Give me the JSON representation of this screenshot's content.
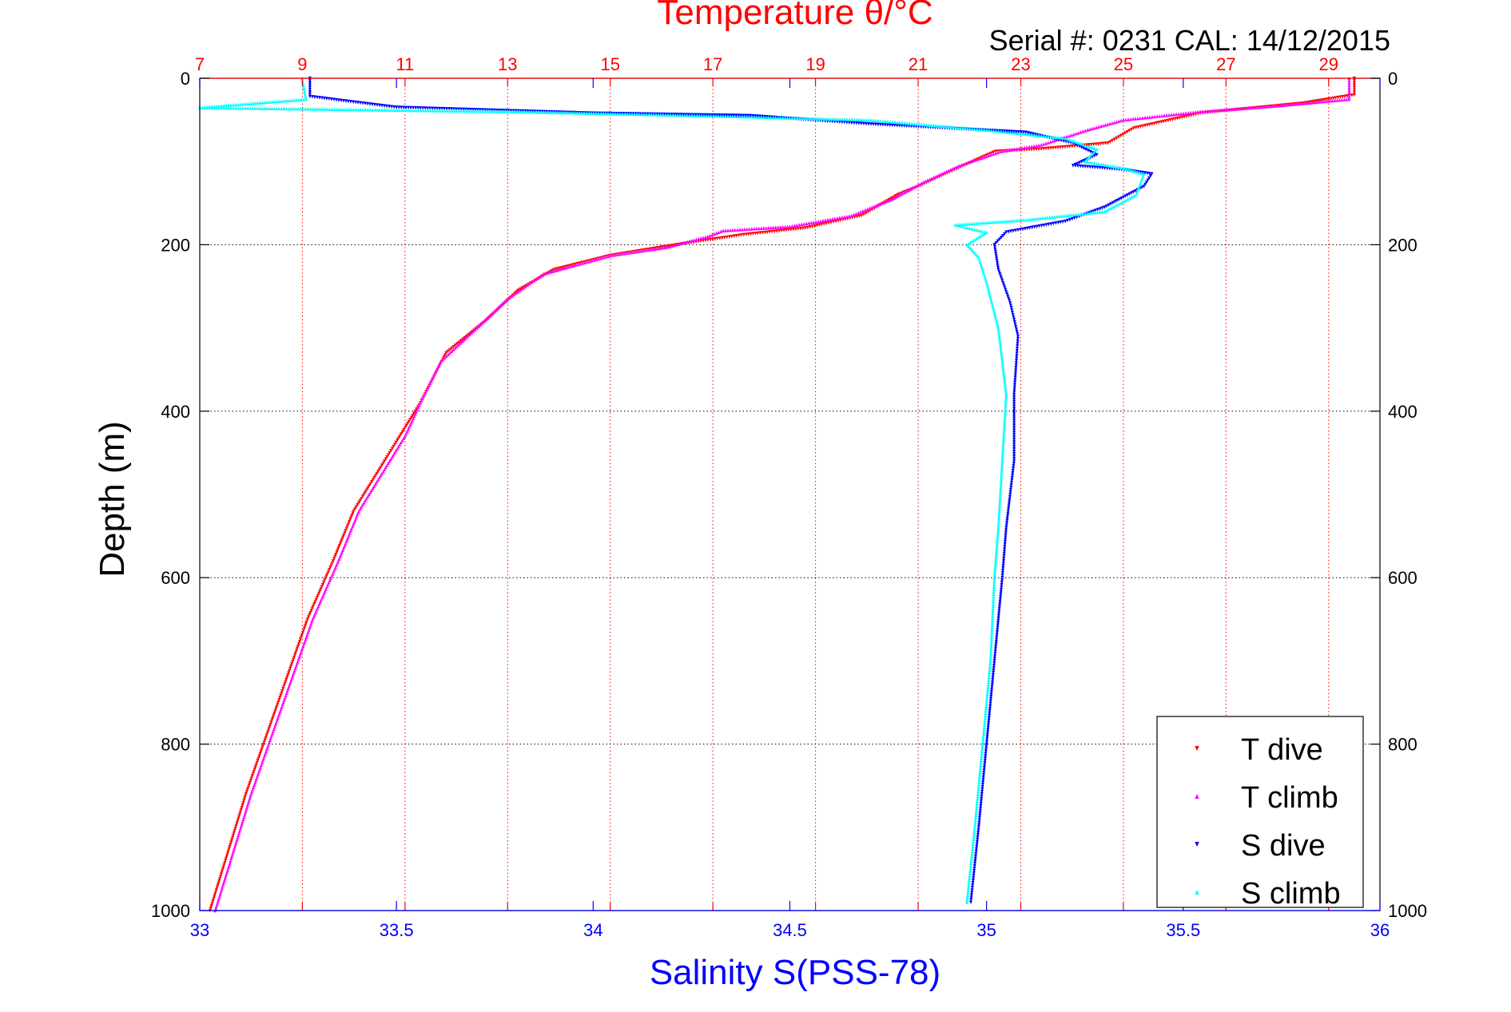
{
  "chart_data": {
    "type": "scatter",
    "title": "Temperature θ/°C",
    "subtitle": "Serial #: 0231  CAL: 14/12/2015",
    "ylabel": "Depth (m)",
    "xlabel_bottom": "Salinity S(PSS-78)",
    "xlabel_top": "Temperature θ/°C",
    "y_reversed": true,
    "ylim": [
      0,
      1000
    ],
    "yticks": [
      0,
      200,
      400,
      600,
      800,
      1000
    ],
    "x_temp_lim": [
      7,
      30
    ],
    "x_temp_ticks": [
      7,
      9,
      11,
      13,
      15,
      17,
      19,
      21,
      23,
      25,
      27,
      29
    ],
    "x_sal_lim": [
      33,
      36
    ],
    "x_sal_ticks": [
      33,
      33.5,
      34,
      34.5,
      35,
      35.5,
      36
    ],
    "grid": true,
    "legend_position": "bottom-right",
    "colors": {
      "temp_axis": "#ff0000",
      "sal_axis": "#0000ff",
      "title": "#ff0000",
      "subtitle": "#000000",
      "ylabel": "#000000",
      "xlabel_bottom": "#0000ff",
      "grid_temp": "#ff0000",
      "grid_depth": "#000000",
      "legend_border": "#000000"
    },
    "series": [
      {
        "name": "T dive",
        "axis": "temperature",
        "marker": "triangle-down",
        "color": "#ff0000",
        "points": [
          [
            29.5,
            0
          ],
          [
            29.5,
            20
          ],
          [
            28.5,
            30
          ],
          [
            26.5,
            42
          ],
          [
            25.2,
            60
          ],
          [
            24.7,
            78
          ],
          [
            23.4,
            85
          ],
          [
            22.5,
            88
          ],
          [
            21.7,
            110
          ],
          [
            21.0,
            130
          ],
          [
            20.6,
            140
          ],
          [
            19.9,
            165
          ],
          [
            18.8,
            180
          ],
          [
            17.6,
            188
          ],
          [
            16.3,
            200
          ],
          [
            15.0,
            213
          ],
          [
            13.9,
            230
          ],
          [
            13.2,
            255
          ],
          [
            12.6,
            290
          ],
          [
            11.8,
            330
          ],
          [
            11.3,
            390
          ],
          [
            10.9,
            430
          ],
          [
            10.5,
            470
          ],
          [
            10.0,
            520
          ],
          [
            9.6,
            580
          ],
          [
            9.1,
            650
          ],
          [
            8.7,
            720
          ],
          [
            8.3,
            790
          ],
          [
            7.9,
            860
          ],
          [
            7.5,
            940
          ],
          [
            7.2,
            1000
          ]
        ]
      },
      {
        "name": "T climb",
        "axis": "temperature",
        "marker": "triangle-up",
        "color": "#ff00ff",
        "points": [
          [
            29.4,
            0
          ],
          [
            29.4,
            25
          ],
          [
            28.0,
            33
          ],
          [
            26.5,
            40
          ],
          [
            25.0,
            50
          ],
          [
            24.3,
            62
          ],
          [
            23.4,
            80
          ],
          [
            22.6,
            88
          ],
          [
            21.8,
            105
          ],
          [
            21.1,
            125
          ],
          [
            20.5,
            145
          ],
          [
            19.7,
            165
          ],
          [
            18.5,
            178
          ],
          [
            17.2,
            183
          ],
          [
            16.9,
            190
          ],
          [
            16.1,
            203
          ],
          [
            15.0,
            213
          ],
          [
            13.7,
            235
          ],
          [
            13.0,
            265
          ],
          [
            12.4,
            300
          ],
          [
            11.7,
            340
          ],
          [
            11.3,
            390
          ],
          [
            11.0,
            430
          ],
          [
            10.6,
            470
          ],
          [
            10.1,
            520
          ],
          [
            9.7,
            580
          ],
          [
            9.2,
            650
          ],
          [
            8.8,
            720
          ],
          [
            8.4,
            790
          ],
          [
            8.0,
            860
          ],
          [
            7.6,
            940
          ],
          [
            7.3,
            1000
          ]
        ]
      },
      {
        "name": "S dive",
        "axis": "salinity",
        "marker": "triangle-down",
        "color": "#0000ff",
        "points": [
          [
            33.28,
            0
          ],
          [
            33.28,
            22
          ],
          [
            33.5,
            35
          ],
          [
            34.0,
            42
          ],
          [
            34.4,
            45
          ],
          [
            34.7,
            55
          ],
          [
            35.1,
            65
          ],
          [
            35.22,
            78
          ],
          [
            35.28,
            92
          ],
          [
            35.22,
            105
          ],
          [
            35.35,
            110
          ],
          [
            35.42,
            115
          ],
          [
            35.4,
            130
          ],
          [
            35.3,
            155
          ],
          [
            35.2,
            172
          ],
          [
            35.05,
            185
          ],
          [
            35.02,
            200
          ],
          [
            35.03,
            230
          ],
          [
            35.06,
            270
          ],
          [
            35.08,
            310
          ],
          [
            35.07,
            380
          ],
          [
            35.07,
            460
          ],
          [
            35.05,
            540
          ],
          [
            35.04,
            600
          ],
          [
            35.02,
            700
          ],
          [
            35.0,
            800
          ],
          [
            34.98,
            900
          ],
          [
            34.96,
            990
          ]
        ]
      },
      {
        "name": "S climb",
        "axis": "salinity",
        "marker": "triangle-up",
        "color": "#00ffff",
        "points": [
          [
            33.26,
            0
          ],
          [
            33.27,
            25
          ],
          [
            33.0,
            35
          ],
          [
            33.8,
            40
          ],
          [
            34.3,
            45
          ],
          [
            34.7,
            50
          ],
          [
            35.0,
            62
          ],
          [
            35.2,
            72
          ],
          [
            35.28,
            85
          ],
          [
            35.25,
            100
          ],
          [
            35.35,
            108
          ],
          [
            35.4,
            115
          ],
          [
            35.38,
            140
          ],
          [
            35.3,
            160
          ],
          [
            35.1,
            170
          ],
          [
            34.92,
            176
          ],
          [
            35.0,
            185
          ],
          [
            34.95,
            200
          ],
          [
            34.98,
            215
          ],
          [
            35.0,
            245
          ],
          [
            35.03,
            300
          ],
          [
            35.05,
            380
          ],
          [
            35.04,
            460
          ],
          [
            35.03,
            540
          ],
          [
            35.02,
            600
          ],
          [
            35.01,
            700
          ],
          [
            34.99,
            800
          ],
          [
            34.97,
            900
          ],
          [
            34.95,
            990
          ]
        ]
      }
    ]
  }
}
